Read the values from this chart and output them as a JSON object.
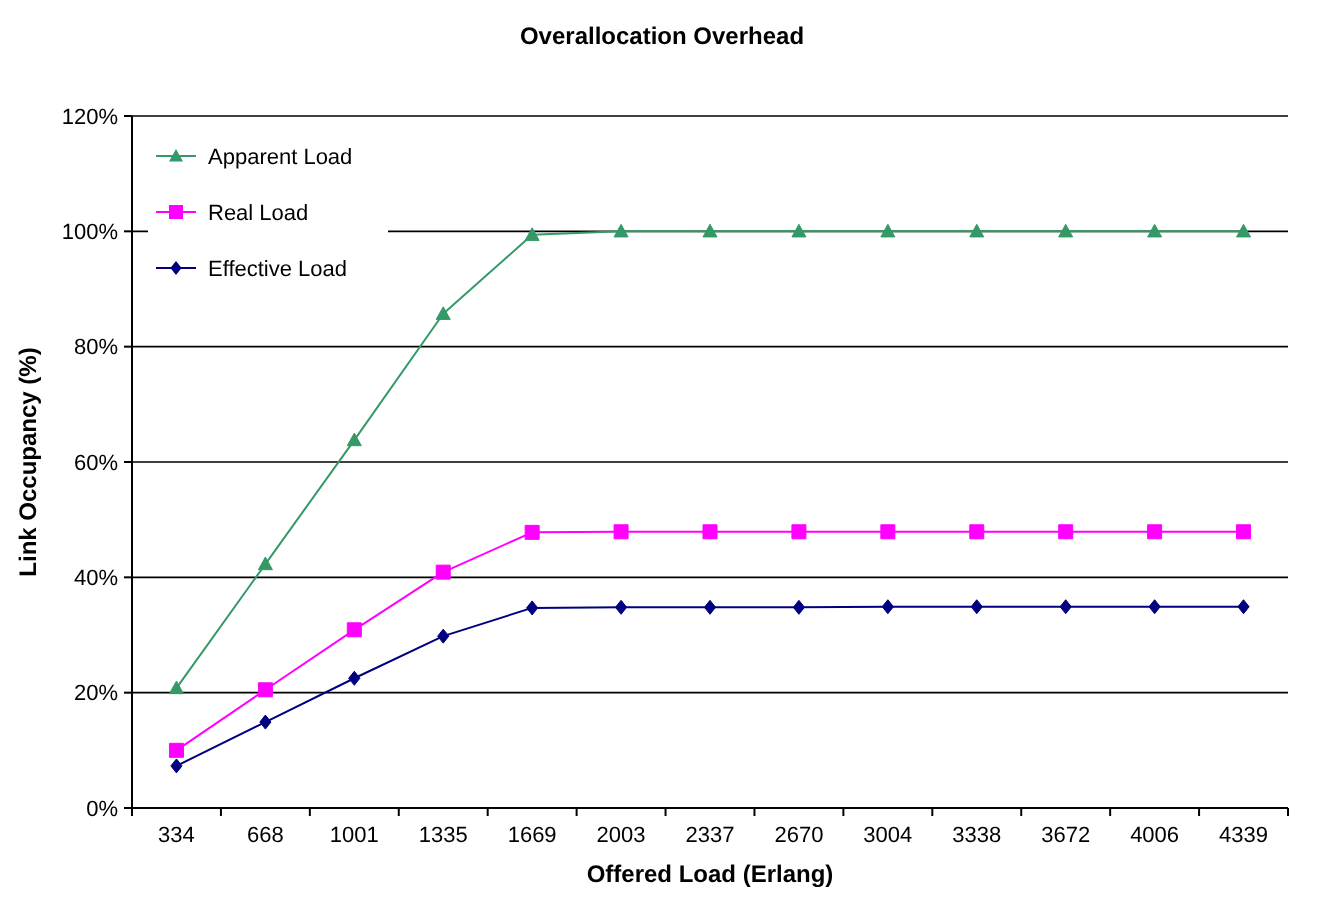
{
  "chart_data": {
    "type": "line",
    "title": "Overallocation Overhead",
    "xlabel": "Offered Load (Erlang)",
    "ylabel": "Link Occupancy (%)",
    "categories": [
      "334",
      "668",
      "1001",
      "1335",
      "1669",
      "2003",
      "2337",
      "2670",
      "3004",
      "3338",
      "3672",
      "4006",
      "4339"
    ],
    "series": [
      {
        "name": "Apparent Load",
        "color": "#339966",
        "marker": "triangle",
        "values": [
          20.8,
          42.3,
          63.8,
          85.7,
          99.4,
          100,
          100,
          100,
          100,
          100,
          100,
          100,
          100
        ]
      },
      {
        "name": "Real Load",
        "color": "#ff00ff",
        "marker": "square",
        "values": [
          10,
          20.5,
          30.9,
          40.9,
          47.8,
          47.9,
          47.9,
          47.9,
          47.9,
          47.9,
          47.9,
          47.9,
          47.9
        ]
      },
      {
        "name": "Effective Load",
        "color": "#000080",
        "marker": "diamond",
        "values": [
          7.3,
          14.9,
          22.5,
          29.8,
          34.7,
          34.8,
          34.8,
          34.8,
          34.9,
          34.9,
          34.9,
          34.9,
          34.9
        ]
      }
    ],
    "ylim": [
      0,
      120
    ],
    "yticks": [
      {
        "value": 0,
        "label": "0%"
      },
      {
        "value": 20,
        "label": "20%"
      },
      {
        "value": 40,
        "label": "40%"
      },
      {
        "value": 60,
        "label": "60%"
      },
      {
        "value": 80,
        "label": "80%"
      },
      {
        "value": 100,
        "label": "100%"
      },
      {
        "value": 120,
        "label": "120%"
      }
    ],
    "grid": "y",
    "legend": "top left",
    "line_style": "solid"
  }
}
